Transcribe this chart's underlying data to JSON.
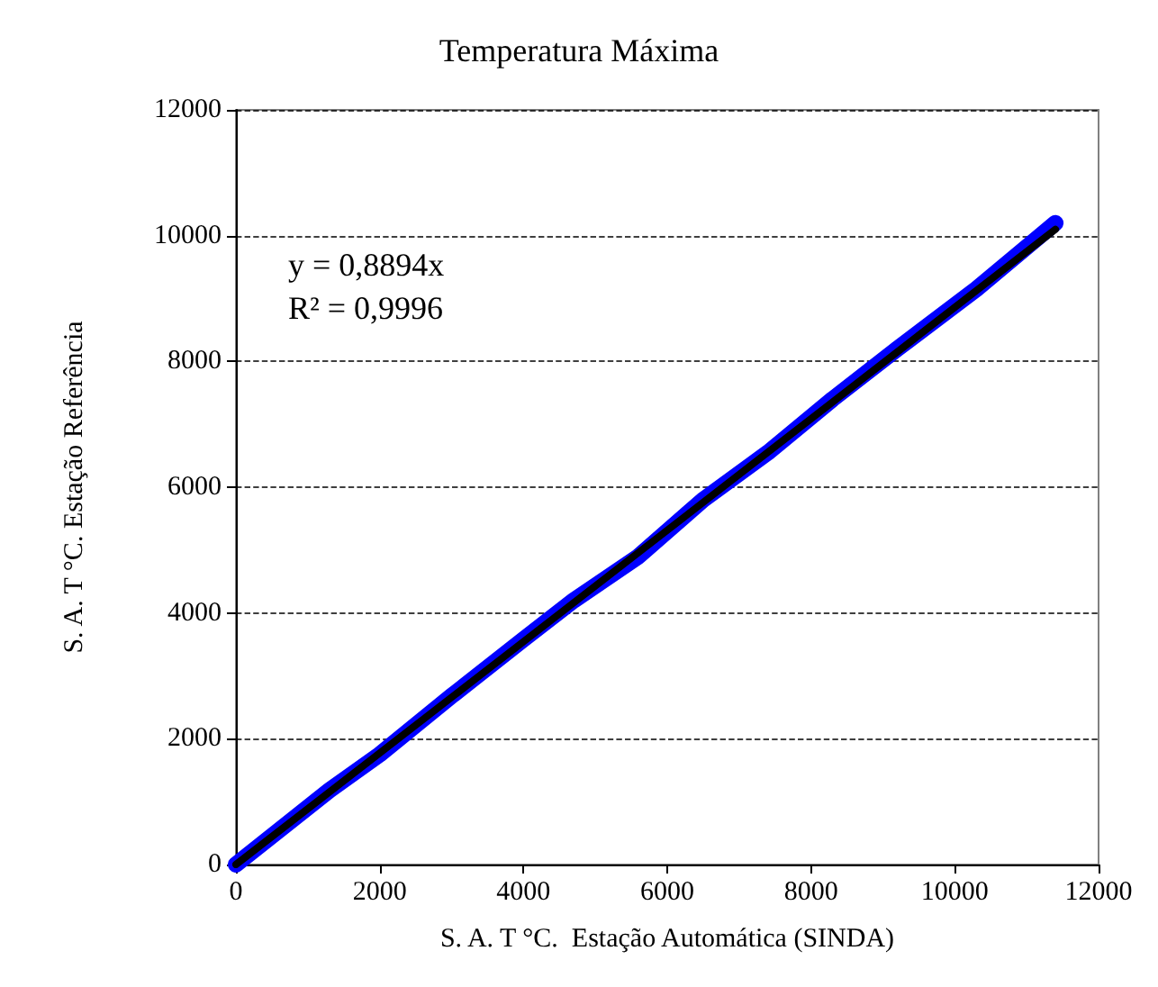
{
  "chart_data": {
    "type": "line",
    "title": "Temperatura Máxima",
    "xlabel": "S. A. T °C.  Estação Automática (SINDA)",
    "ylabel": "S. A. T °C. Estação Referência",
    "xlim": [
      0,
      12000
    ],
    "xticks": [
      0,
      2000,
      4000,
      6000,
      8000,
      10000,
      12000
    ],
    "ylim": [
      0,
      12000
    ],
    "yticks": [
      0,
      2000,
      4000,
      6000,
      8000,
      10000,
      12000
    ],
    "grid": "y",
    "marker": "none",
    "annotations": [
      "y = 0,8894x",
      "R² = 0,9996"
    ],
    "series": [
      {
        "color": "#0000ff",
        "x": [
          0,
          1300,
          2000,
          3000,
          4000,
          4700,
          5600,
          6500,
          7400,
          8300,
          9200,
          10300,
          11400
        ],
        "values": [
          0,
          1180,
          1750,
          2680,
          3580,
          4200,
          4900,
          5800,
          6550,
          7400,
          8200,
          9150,
          10200
        ]
      },
      {
        "color": "#000000",
        "x": [
          0,
          11400
        ],
        "values": [
          0,
          10100
        ]
      }
    ]
  }
}
